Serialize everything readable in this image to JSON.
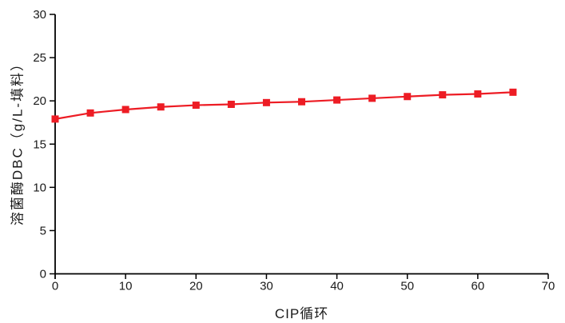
{
  "chart_data": {
    "type": "line",
    "title": "",
    "xlabel": "CIP循环",
    "ylabel": "溶菌酶DBC（g/L-填料）",
    "x": [
      0,
      5,
      10,
      15,
      20,
      25,
      30,
      35,
      40,
      45,
      50,
      55,
      60,
      65
    ],
    "series": [
      {
        "name": "溶菌酶DBC",
        "values": [
          17.9,
          18.6,
          19.0,
          19.3,
          19.5,
          19.6,
          19.8,
          19.9,
          20.1,
          20.3,
          20.5,
          20.7,
          20.8,
          21.0
        ],
        "marker": "square"
      }
    ],
    "xlim": [
      0,
      70
    ],
    "ylim": [
      0,
      30
    ],
    "xticks": [
      0,
      10,
      20,
      30,
      40,
      50,
      60,
      70
    ],
    "yticks": [
      0,
      5,
      10,
      15,
      20,
      25,
      30
    ],
    "grid": false,
    "legend": false
  },
  "colors": {
    "series": "#ED1C24",
    "axis": "#000000",
    "text": "#1a1a1a",
    "background": "#ffffff"
  }
}
